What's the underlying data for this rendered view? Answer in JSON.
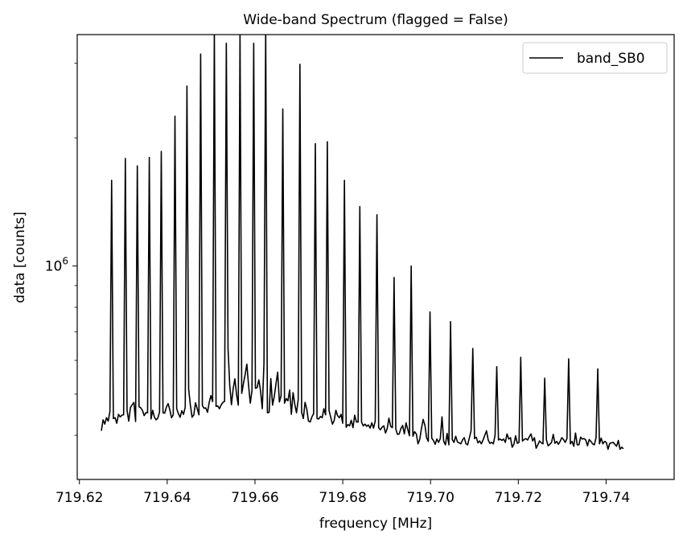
{
  "chart_data": {
    "type": "line",
    "title": "Wide-band Spectrum (flagged = False)",
    "xlabel": "frequency [MHz]",
    "ylabel": "data [counts]",
    "xlim": [
      719.6195,
      719.7555
    ],
    "ylim": [
      315000,
      3500000
    ],
    "yscale": "log",
    "x_ticks": [
      719.62,
      719.64,
      719.66,
      719.68,
      719.7,
      719.72,
      719.74
    ],
    "x_tick_labels": [
      "719.62",
      "719.64",
      "719.66",
      "719.68",
      "719.70",
      "719.72",
      "719.74"
    ],
    "y_tick_base": "10",
    "y_tick_exp": "6",
    "y_major_ticks": [
      1000000
    ],
    "y_minor_ticks": [
      400000,
      500000,
      600000,
      700000,
      800000,
      900000,
      2000000,
      3000000
    ],
    "grid": false,
    "legend_loc": "upper right",
    "series": [
      {
        "name": "band_SB0",
        "color": "#000000",
        "x_start": 719.625,
        "x_step": 0.00039,
        "values": [
          410000,
          435000,
          425000,
          440000,
          432000,
          455000,
          1590000,
          438000,
          440000,
          427000,
          448000,
          442000,
          446000,
          447000,
          1790000,
          458000,
          432000,
          465000,
          472000,
          478000,
          431000,
          1720000,
          467000,
          464000,
          458000,
          445000,
          452000,
          452000,
          1800000,
          437000,
          458000,
          441000,
          435000,
          439000,
          454000,
          1860000,
          452000,
          451000,
          466000,
          475000,
          459000,
          440000,
          447000,
          2250000,
          462000,
          450000,
          441000,
          457000,
          448000,
          466000,
          2650000,
          514000,
          471000,
          441000,
          447000,
          477000,
          462000,
          447000,
          3150000,
          470000,
          463000,
          464000,
          453000,
          478000,
          496000,
          480000,
          3600000,
          468000,
          469000,
          462000,
          472000,
          478000,
          481000,
          3340000,
          640000,
          524000,
          472000,
          515000,
          543000,
          498000,
          471000,
          3540000,
          502000,
          529000,
          556000,
          588000,
          524000,
          476000,
          510000,
          3340000,
          516000,
          518000,
          540000,
          509000,
          462000,
          592000,
          3620000,
          452000,
          453000,
          544000,
          471000,
          493000,
          528000,
          563000,
          479000,
          496000,
          2340000,
          476000,
          488000,
          482000,
          511000,
          448000,
          504000,
          473000,
          452000,
          485000,
          2980000,
          453000,
          438000,
          478000,
          461000,
          432000,
          430000,
          442000,
          450000,
          1940000,
          438000,
          437000,
          443000,
          440000,
          462000,
          447000,
          1960000,
          458000,
          441000,
          425000,
          433000,
          458000,
          445000,
          440000,
          448000,
          427000,
          1590000,
          418000,
          424000,
          421000,
          434000,
          417000,
          446000,
          430000,
          430000,
          1380000,
          430000,
          421000,
          425000,
          420000,
          423000,
          416000,
          428000,
          416000,
          432000,
          1320000,
          417000,
          412000,
          418000,
          421000,
          405000,
          415000,
          439000,
          420000,
          417000,
          940000,
          414000,
          402000,
          403000,
          415000,
          422000,
          403000,
          428000,
          413000,
          399000,
          1000000,
          398000,
          408000,
          403000,
          382000,
          391000,
          415000,
          436000,
          423000,
          395000,
          387000,
          780000,
          394000,
          389000,
          381000,
          392000,
          385000,
          393000,
          442000,
          387000,
          380000,
          404000,
          380000,
          740000,
          391000,
          385000,
          398000,
          386000,
          384000,
          382000,
          390000,
          395000,
          382000,
          380000,
          395000,
          410000,
          640000,
          393000,
          396000,
          384000,
          388000,
          382000,
          390000,
          400000,
          410000,
          390000,
          383000,
          385000,
          382000,
          400000,
          580000,
          390000,
          392000,
          389000,
          392000,
          385000,
          403000,
          392000,
          395000,
          375000,
          381000,
          399000,
          383000,
          385000,
          610000,
          388000,
          391000,
          393000,
          390000,
          397000,
          403000,
          388000,
          395000,
          373000,
          380000,
          388000,
          384000,
          382000,
          545000,
          390000,
          378000,
          381000,
          385000,
          402000,
          383000,
          387000,
          381000,
          387000,
          395000,
          391000,
          385000,
          393000,
          605000,
          382000,
          387000,
          377000,
          405000,
          380000,
          380000,
          396000,
          392000,
          393000,
          390000,
          378000,
          391000,
          387000,
          382000,
          380000,
          395000,
          573000,
          382000,
          394000,
          382000,
          387000,
          385000,
          371000,
          383000,
          384000,
          385000,
          381000,
          377000,
          389000,
          371000,
          375000,
          372000
        ]
      }
    ]
  }
}
